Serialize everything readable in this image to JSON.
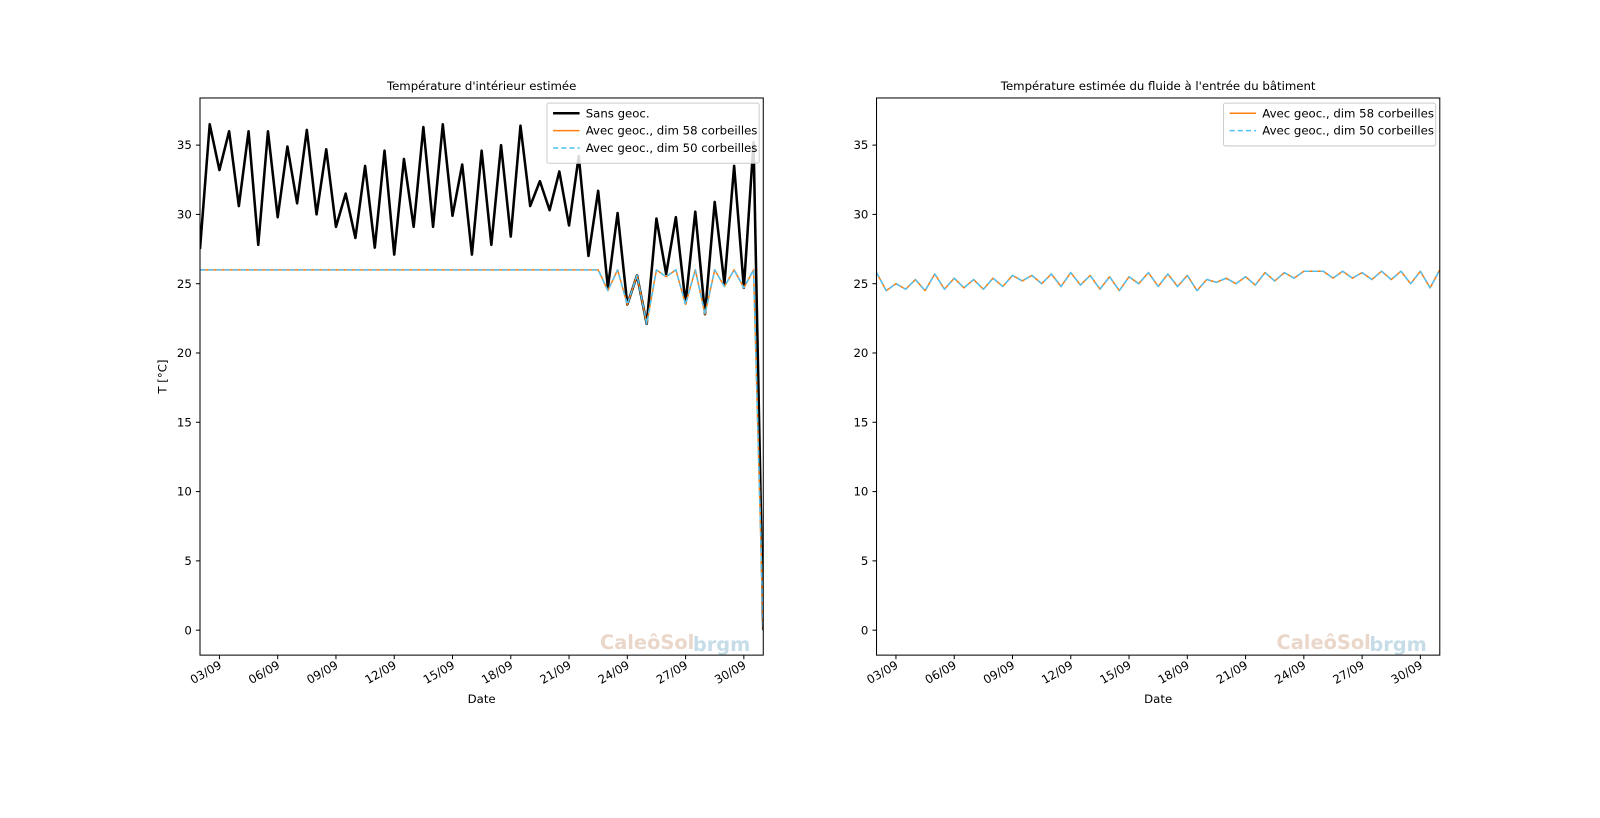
{
  "chart_data": [
    {
      "type": "line",
      "title": "Température d'intérieur estimée",
      "xlabel": "Date",
      "ylabel": "T [°C]",
      "x": [
        2,
        2.5,
        3,
        3.5,
        4,
        4.5,
        5,
        5.5,
        6,
        6.5,
        7,
        7.5,
        8,
        8.5,
        9,
        9.5,
        10,
        10.5,
        11,
        11.5,
        12,
        12.5,
        13,
        13.5,
        14,
        14.5,
        15,
        15.5,
        16,
        16.5,
        17,
        17.5,
        18,
        18.5,
        19,
        19.5,
        20,
        20.5,
        21,
        21.5,
        22,
        22.5,
        23,
        23.5,
        24,
        24.5,
        25,
        25.5,
        26,
        26.5,
        27,
        27.5,
        28,
        28.5,
        29,
        29.5,
        30,
        30.5,
        31
      ],
      "series": [
        {
          "name": "Sans geoc.",
          "color": "#000000",
          "linestyle": "solid",
          "width": 2.5,
          "values": [
            27.5,
            36.5,
            33.2,
            36,
            30.6,
            36,
            27.8,
            36,
            29.8,
            34.9,
            30.8,
            36.1,
            30,
            34.7,
            29.1,
            31.5,
            28.3,
            33.5,
            27.6,
            34.6,
            27.1,
            34,
            29.1,
            36.3,
            29.1,
            36.5,
            29.9,
            33.6,
            27.1,
            34.6,
            27.8,
            35,
            28.4,
            36.4,
            30.6,
            32.4,
            30.3,
            33.1,
            29.2,
            34.2,
            27,
            31.7,
            24.7,
            30.1,
            23.5,
            25.6,
            22.1,
            29.7,
            25.7,
            29.8,
            23.6,
            30.2,
            22.8,
            30.9,
            25,
            33.5,
            24.7,
            35.2,
            0
          ]
        },
        {
          "name": "Avec geoc., dim 58 corbeilles",
          "color": "#ff7f0e",
          "linestyle": "solid",
          "width": 1.5,
          "values": [
            26,
            26,
            26,
            26,
            26,
            26,
            26,
            26,
            26,
            26,
            26,
            26,
            26,
            26,
            26,
            26,
            26,
            26,
            26,
            26,
            26,
            26,
            26,
            26,
            26,
            26,
            26,
            26,
            26,
            26,
            26,
            26,
            26,
            26,
            26,
            26,
            26,
            26,
            26,
            26,
            26,
            26,
            24.5,
            26,
            23.5,
            25.6,
            22.1,
            26,
            25.5,
            26,
            23.5,
            26,
            22.8,
            26,
            24.8,
            26,
            24.7,
            26,
            0
          ]
        },
        {
          "name": "Avec geoc., dim 50 corbeilles",
          "color": "#4fc3f7",
          "linestyle": "dashed",
          "width": 1.5,
          "values": [
            26,
            26,
            26,
            26,
            26,
            26,
            26,
            26,
            26,
            26,
            26,
            26,
            26,
            26,
            26,
            26,
            26,
            26,
            26,
            26,
            26,
            26,
            26,
            26,
            26,
            26,
            26,
            26,
            26,
            26,
            26,
            26,
            26,
            26,
            26,
            26,
            26,
            26,
            26,
            26,
            26,
            26,
            24.5,
            26,
            23.5,
            25.6,
            22.1,
            26,
            25.5,
            26,
            23.5,
            26,
            22.8,
            26,
            24.8,
            26,
            24.7,
            26,
            0
          ]
        }
      ],
      "xlim": [
        2,
        31
      ],
      "ylim": [
        -1.8,
        38.4
      ],
      "xticks": [
        {
          "value": 3,
          "label": "03/09"
        },
        {
          "value": 6,
          "label": "06/09"
        },
        {
          "value": 9,
          "label": "09/09"
        },
        {
          "value": 12,
          "label": "12/09"
        },
        {
          "value": 15,
          "label": "15/09"
        },
        {
          "value": 18,
          "label": "18/09"
        },
        {
          "value": 21,
          "label": "21/09"
        },
        {
          "value": 24,
          "label": "24/09"
        },
        {
          "value": 27,
          "label": "27/09"
        },
        {
          "value": 30,
          "label": "30/09"
        }
      ],
      "yticks": [
        0,
        5,
        10,
        15,
        20,
        25,
        30,
        35
      ],
      "legend": "upper right",
      "watermark": [
        "CaleôSol",
        "brgm"
      ]
    },
    {
      "type": "line",
      "title": "Température estimée du fluide à l'entrée du bâtiment",
      "xlabel": "Date",
      "x": [
        2,
        2.5,
        3,
        3.5,
        4,
        4.5,
        5,
        5.5,
        6,
        6.5,
        7,
        7.5,
        8,
        8.5,
        9,
        9.5,
        10,
        10.5,
        11,
        11.5,
        12,
        12.5,
        13,
        13.5,
        14,
        14.5,
        15,
        15.5,
        16,
        16.5,
        17,
        17.5,
        18,
        18.5,
        19,
        19.5,
        20,
        20.5,
        21,
        21.5,
        22,
        22.5,
        23,
        23.5,
        24,
        24.5,
        25,
        25.5,
        26,
        26.5,
        27,
        27.5,
        28,
        28.5,
        29,
        29.5,
        30,
        30.5,
        31
      ],
      "series": [
        {
          "name": "Avec geoc., dim 58 corbeilles",
          "color": "#ff7f0e",
          "linestyle": "solid",
          "width": 1.5,
          "values": [
            25.8,
            24.5,
            25,
            24.6,
            25.3,
            24.5,
            25.7,
            24.6,
            25.4,
            24.7,
            25.3,
            24.6,
            25.4,
            24.8,
            25.6,
            25.2,
            25.6,
            25,
            25.7,
            24.8,
            25.8,
            24.9,
            25.6,
            24.6,
            25.5,
            24.5,
            25.5,
            25,
            25.8,
            24.8,
            25.7,
            24.8,
            25.6,
            24.5,
            25.3,
            25.1,
            25.4,
            25,
            25.5,
            24.9,
            25.8,
            25.2,
            25.8,
            25.4,
            25.9,
            25.9,
            25.9,
            25.4,
            25.9,
            25.4,
            25.8,
            25.3,
            25.9,
            25.3,
            25.9,
            25,
            25.9,
            24.7,
            26
          ]
        },
        {
          "name": "Avec geoc., dim 50 corbeilles",
          "color": "#4fc3f7",
          "linestyle": "dashed",
          "width": 1.5,
          "values": [
            25.8,
            24.5,
            25,
            24.6,
            25.3,
            24.5,
            25.7,
            24.6,
            25.4,
            24.7,
            25.3,
            24.6,
            25.4,
            24.8,
            25.6,
            25.2,
            25.6,
            25,
            25.7,
            24.8,
            25.8,
            24.9,
            25.6,
            24.6,
            25.5,
            24.5,
            25.5,
            25,
            25.8,
            24.8,
            25.7,
            24.8,
            25.6,
            24.5,
            25.3,
            25.1,
            25.4,
            25,
            25.5,
            24.9,
            25.8,
            25.2,
            25.8,
            25.4,
            25.9,
            25.9,
            25.9,
            25.4,
            25.9,
            25.4,
            25.8,
            25.3,
            25.9,
            25.3,
            25.9,
            25,
            25.9,
            24.7,
            26
          ]
        }
      ],
      "xlim": [
        2,
        31
      ],
      "ylim": [
        -1.8,
        38.4
      ],
      "xticks": [
        {
          "value": 3,
          "label": "03/09"
        },
        {
          "value": 6,
          "label": "06/09"
        },
        {
          "value": 9,
          "label": "09/09"
        },
        {
          "value": 12,
          "label": "12/09"
        },
        {
          "value": 15,
          "label": "15/09"
        },
        {
          "value": 18,
          "label": "18/09"
        },
        {
          "value": 21,
          "label": "21/09"
        },
        {
          "value": 24,
          "label": "24/09"
        },
        {
          "value": 27,
          "label": "27/09"
        },
        {
          "value": 30,
          "label": "30/09"
        }
      ],
      "yticks": [
        0,
        5,
        10,
        15,
        20,
        25,
        30,
        35
      ],
      "legend": "upper right",
      "watermark": [
        "CaleôSol",
        "brgm"
      ]
    }
  ]
}
